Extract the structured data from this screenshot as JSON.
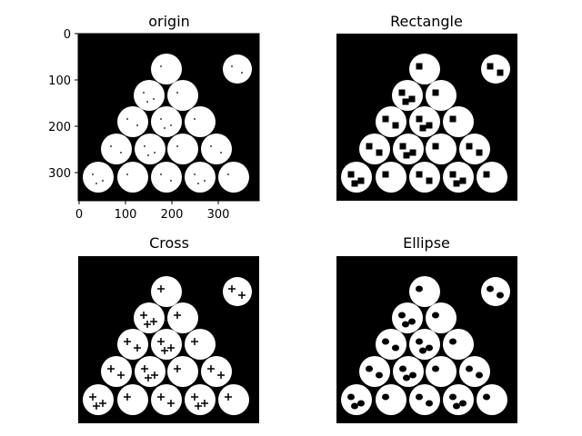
{
  "chart_data": [
    {
      "type": "image",
      "title": "origin",
      "show_axes": true,
      "xlim": [
        0,
        390
      ],
      "ylim": [
        0,
        360
      ],
      "y_inverted": true,
      "x_ticks": [
        0,
        100,
        200,
        300
      ],
      "y_ticks": [
        0,
        100,
        200,
        300
      ],
      "x_tick_labels": [
        "0",
        "100",
        "200",
        "300"
      ],
      "y_tick_labels": [
        "0",
        "100",
        "200",
        "300"
      ],
      "mark_style": "none"
    },
    {
      "type": "image",
      "title": "Rectangle",
      "show_axes": false,
      "mark_style": "square"
    },
    {
      "type": "image",
      "title": "Cross",
      "show_axes": false,
      "mark_style": "cross"
    },
    {
      "type": "image",
      "title": "Ellipse",
      "show_axes": false,
      "mark_style": "ellipse"
    }
  ],
  "colors": {
    "background": "#000000",
    "foreground": "#ffffff",
    "figure": "#ffffff"
  }
}
